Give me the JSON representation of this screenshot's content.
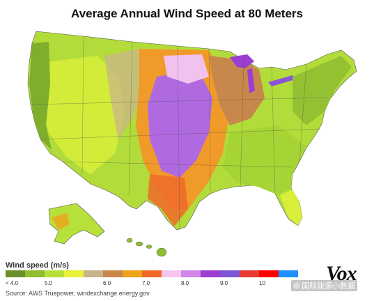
{
  "title": "Average Annual Wind Speed at 80 Meters",
  "legend": {
    "title": "Wind speed (m/s)",
    "colors": [
      "#6b8f2a",
      "#8fbf2f",
      "#b6e03a",
      "#e8f23a",
      "#c8b48a",
      "#c9884b",
      "#f0a21c",
      "#f2682a",
      "#f4c6ef",
      "#cf86e6",
      "#9a3fd1",
      "#7d56d6",
      "#e83a32",
      "#ff0000",
      "#1e8fff"
    ],
    "ticks": [
      {
        "label": "< 4.0",
        "index": 0
      },
      {
        "label": "5.0",
        "index": 2
      },
      {
        "label": "6.0",
        "index": 5
      },
      {
        "label": "7.0",
        "index": 7
      },
      {
        "label": "8.0",
        "index": 9
      },
      {
        "label": "9.0",
        "index": 11
      },
      {
        "label": "10",
        "index": 13
      }
    ]
  },
  "source": "Source: AWS Truepower, windexchange.energy.gov",
  "logo": "Vox",
  "watermark": "国际能源小数据"
}
